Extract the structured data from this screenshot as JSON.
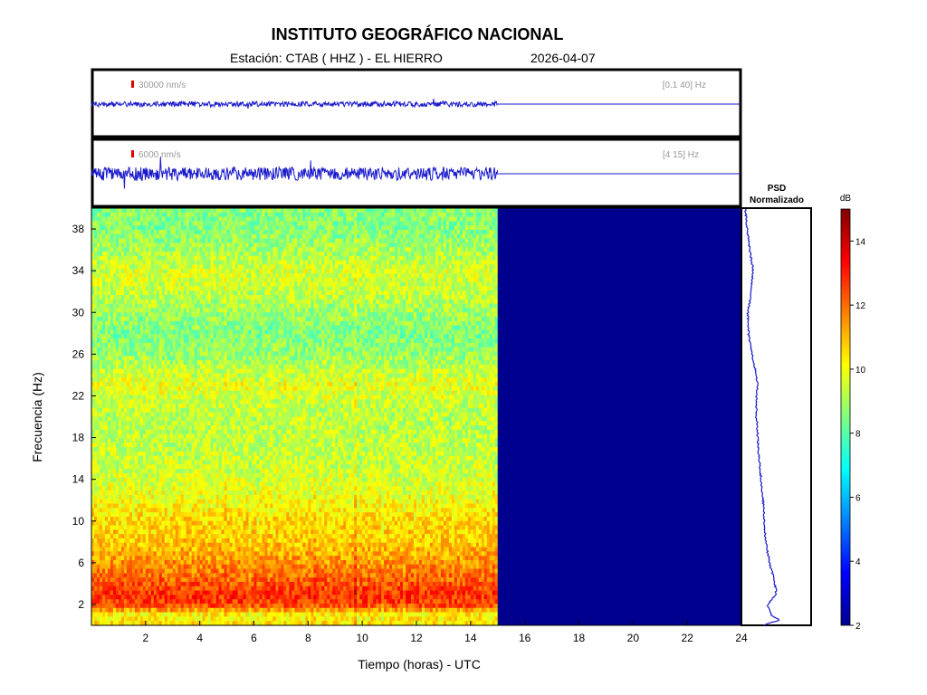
{
  "header": {
    "title": "INSTITUTO GEOGRÁFICO NACIONAL",
    "station": "Estación:  CTAB ( HHZ ) - EL HIERRO",
    "date": "2026-04-07"
  },
  "traces": [
    {
      "scale_label": "30000 nm/s",
      "band_label": "[0.1 40] Hz",
      "amplitude_fraction": 0.08
    },
    {
      "scale_label": "6000 nm/s",
      "band_label": "[4 15] Hz",
      "amplitude_fraction": 0.2
    }
  ],
  "psd_panel": {
    "title_line1": "PSD",
    "title_line2": "Normalizado"
  },
  "colorbar": {
    "unit": "dB",
    "min": 2,
    "max": 15,
    "ticks": [
      2,
      4,
      6,
      8,
      10,
      12,
      14
    ]
  },
  "colors": {
    "trace": "#1a1acc",
    "psd_line": "#1a1acc",
    "no_data": "#00008f",
    "colormap": [
      "#00008f",
      "#0000ff",
      "#0080ff",
      "#00ffff",
      "#80ff80",
      "#ffff00",
      "#ff8000",
      "#ff0000",
      "#800000"
    ]
  },
  "chart_data": {
    "type": "heatmap",
    "title": "INSTITUTO GEOGRÁFICO NACIONAL",
    "xlabel": "Tiempo (horas) - UTC",
    "ylabel": "Frecuencia  (Hz)",
    "xlim": [
      0,
      24
    ],
    "ylim": [
      0,
      40
    ],
    "xticks": [
      2,
      4,
      6,
      8,
      10,
      12,
      14,
      16,
      18,
      20,
      22,
      24
    ],
    "yticks": [
      2,
      6,
      10,
      14,
      18,
      22,
      26,
      30,
      34,
      38
    ],
    "data_end_hour": 15,
    "mean_level_db_by_frequency": {
      "frequency_hz": [
        0,
        1,
        2,
        3,
        4,
        6,
        8,
        10,
        12,
        14,
        16,
        18,
        20,
        22,
        23,
        24,
        26,
        28,
        30,
        32,
        34,
        36,
        38,
        40
      ],
      "db": [
        10.5,
        10.2,
        12.6,
        12.8,
        12.3,
        11.5,
        10.8,
        10.6,
        10.0,
        9.6,
        9.4,
        9.3,
        9.2,
        9.6,
        9.9,
        9.5,
        8.8,
        8.5,
        8.9,
        9.4,
        9.6,
        9.0,
        8.6,
        8.6
      ]
    },
    "psd_normalized": {
      "frequency_hz": [
        0,
        0.5,
        1,
        2,
        3,
        4,
        6,
        8,
        10,
        12,
        14,
        16,
        18,
        20,
        22,
        23,
        24,
        26,
        28,
        30,
        32,
        34,
        36,
        38,
        40
      ],
      "value": [
        0.3,
        0.55,
        0.42,
        0.37,
        0.5,
        0.48,
        0.4,
        0.34,
        0.32,
        0.3,
        0.27,
        0.24,
        0.22,
        0.2,
        0.2,
        0.22,
        0.2,
        0.13,
        0.08,
        0.07,
        0.12,
        0.15,
        0.1,
        0.06,
        0.03
      ]
    }
  }
}
